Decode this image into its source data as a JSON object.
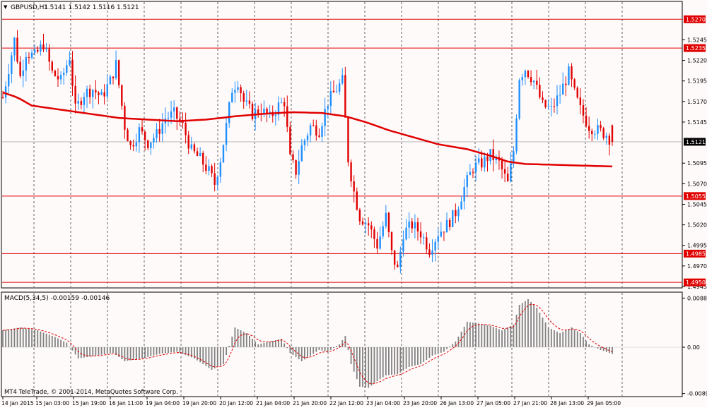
{
  "header": {
    "symbol": "GBPUSD,H1",
    "ohlc": "1.5141 1.5142 1.5116 1.5121"
  },
  "colors": {
    "background": "#fffafa",
    "bull": "#1e90ff",
    "bear": "#e00000",
    "ma_line": "#e00000",
    "grid": "#000000",
    "level_line": "#e00000",
    "price_tag_bg": "#e00000",
    "current_tag_bg": "#000000",
    "macd_hist": "#808080",
    "macd_signal": "#e00000"
  },
  "price_axis": {
    "ticks": [
      "1.5245",
      "1.5220",
      "1.5195",
      "1.5170",
      "1.5145",
      "1.5095",
      "1.5070",
      "1.5045",
      "1.5020",
      "1.4995",
      "1.4970",
      "1.4945"
    ],
    "levels": [
      "1.5270",
      "1.5235",
      "1.5055",
      "1.4985",
      "1.4950"
    ],
    "current": "1.5121"
  },
  "macd": {
    "label": "MACD(5,34,5) -0.00159 -0.00146",
    "ticks": [
      "0.00888",
      "0.00",
      "-0.0089"
    ]
  },
  "copyright": "MT4 TeleTrade, © 2001-2014, MetaQuotes Software Corp.",
  "time_axis": [
    "14 Jan 2015",
    "15 Jan 03:00",
    "15 Jan 19:00",
    "16 Jan 11:00",
    "19 Jan 04:00",
    "19 Jan 20:00",
    "20 Jan 12:00",
    "21 Jan 04:00",
    "21 Jan 20:00",
    "22 Jan 12:00",
    "23 Jan 04:00",
    "23 Jan 20:00",
    "26 Jan 13:00",
    "27 Jan 05:00",
    "27 Jan 21:00",
    "28 Jan 13:00",
    "29 Jan 05:00"
  ],
  "chart_data": {
    "type": "candlestick",
    "symbol": "GBPUSD",
    "timeframe": "H1",
    "last_bar": {
      "open": 1.5141,
      "high": 1.5142,
      "low": 1.5116,
      "close": 1.5121
    },
    "price_range": [
      1.4945,
      1.529
    ],
    "horizontal_levels": [
      1.527,
      1.5235,
      1.5055,
      1.4985,
      1.495
    ],
    "ma_path": [
      [
        0,
        1.5181
      ],
      [
        5,
        1.5175
      ],
      [
        10,
        1.5165
      ],
      [
        20,
        1.516
      ],
      [
        30,
        1.5155
      ],
      [
        40,
        1.515
      ],
      [
        50,
        1.5148
      ],
      [
        60,
        1.5146
      ],
      [
        70,
        1.5148
      ],
      [
        80,
        1.5152
      ],
      [
        90,
        1.5155
      ],
      [
        100,
        1.5157
      ],
      [
        110,
        1.5156
      ],
      [
        118,
        1.5152
      ],
      [
        125,
        1.5145
      ],
      [
        133,
        1.5135
      ],
      [
        140,
        1.5128
      ],
      [
        150,
        1.5118
      ],
      [
        160,
        1.5112
      ],
      [
        168,
        1.5104
      ],
      [
        174,
        1.5097
      ],
      [
        180,
        1.5094
      ],
      [
        190,
        1.5093
      ],
      [
        200,
        1.5092
      ],
      [
        210,
        1.5091
      ]
    ],
    "price_path": [
      [
        0,
        1.5175
      ],
      [
        2,
        1.521
      ],
      [
        4,
        1.5245
      ],
      [
        6,
        1.52
      ],
      [
        8,
        1.523
      ],
      [
        11,
        1.5225
      ],
      [
        14,
        1.524
      ],
      [
        17,
        1.5205
      ],
      [
        20,
        1.5195
      ],
      [
        23,
        1.5225
      ],
      [
        25,
        1.516
      ],
      [
        28,
        1.518
      ],
      [
        31,
        1.5185
      ],
      [
        34,
        1.5175
      ],
      [
        37,
        1.5195
      ],
      [
        39,
        1.5215
      ],
      [
        42,
        1.514
      ],
      [
        44,
        1.5115
      ],
      [
        47,
        1.5135
      ],
      [
        50,
        1.512
      ],
      [
        53,
        1.513
      ],
      [
        56,
        1.515
      ],
      [
        59,
        1.5155
      ],
      [
        62,
        1.514
      ],
      [
        65,
        1.511
      ],
      [
        68,
        1.51
      ],
      [
        71,
        1.5085
      ],
      [
        73,
        1.507
      ],
      [
        75,
        1.51
      ],
      [
        77,
        1.514
      ],
      [
        79,
        1.5185
      ],
      [
        81,
        1.5195
      ],
      [
        83,
        1.517
      ],
      [
        86,
        1.5155
      ],
      [
        89,
        1.516
      ],
      [
        92,
        1.515
      ],
      [
        95,
        1.5165
      ],
      [
        97,
        1.517
      ],
      [
        99,
        1.51
      ],
      [
        101,
        1.5085
      ],
      [
        103,
        1.5115
      ],
      [
        106,
        1.514
      ],
      [
        109,
        1.5135
      ],
      [
        112,
        1.517
      ],
      [
        115,
        1.5185
      ],
      [
        117,
        1.5195
      ],
      [
        119,
        1.51
      ],
      [
        121,
        1.506
      ],
      [
        123,
        1.503
      ],
      [
        126,
        1.502
      ],
      [
        129,
        1.4995
      ],
      [
        132,
        1.503
      ],
      [
        134,
        1.4985
      ],
      [
        136,
        1.4965
      ],
      [
        138,
        1.501
      ],
      [
        141,
        1.502
      ],
      [
        144,
        1.501
      ],
      [
        147,
        1.499
      ],
      [
        150,
        1.501
      ],
      [
        153,
        1.502
      ],
      [
        156,
        1.5035
      ],
      [
        159,
        1.5065
      ],
      [
        162,
        1.509
      ],
      [
        165,
        1.5095
      ],
      [
        168,
        1.5105
      ],
      [
        171,
        1.5095
      ],
      [
        174,
        1.507
      ],
      [
        176,
        1.511
      ],
      [
        178,
        1.52
      ],
      [
        180,
        1.521
      ],
      [
        183,
        1.5195
      ],
      [
        186,
        1.5165
      ],
      [
        189,
        1.516
      ],
      [
        192,
        1.518
      ],
      [
        195,
        1.5205
      ],
      [
        197,
        1.518
      ],
      [
        199,
        1.516
      ],
      [
        202,
        1.514
      ],
      [
        205,
        1.5135
      ],
      [
        208,
        1.513
      ],
      [
        210,
        1.5121
      ]
    ],
    "macd_path": [
      [
        0,
        0.003
      ],
      [
        6,
        0.0035
      ],
      [
        12,
        0.003
      ],
      [
        18,
        0.0018
      ],
      [
        22,
        0.0008
      ],
      [
        26,
        -0.002
      ],
      [
        32,
        -0.0015
      ],
      [
        38,
        -0.001
      ],
      [
        42,
        -0.0025
      ],
      [
        48,
        -0.002
      ],
      [
        54,
        -0.0012
      ],
      [
        60,
        -0.0008
      ],
      [
        66,
        -0.002
      ],
      [
        72,
        -0.004
      ],
      [
        76,
        -0.003
      ],
      [
        80,
        0.0035
      ],
      [
        84,
        0.0025
      ],
      [
        88,
        0.0005
      ],
      [
        92,
        0.001
      ],
      [
        96,
        0.0015
      ],
      [
        99,
        -0.001
      ],
      [
        103,
        -0.0025
      ],
      [
        106,
        -0.0015
      ],
      [
        109,
        -0.0005
      ],
      [
        112,
        -0.0008
      ],
      [
        116,
        0.0005
      ],
      [
        118,
        0.002
      ],
      [
        120,
        -0.003
      ],
      [
        123,
        -0.007
      ],
      [
        126,
        -0.0072
      ],
      [
        129,
        -0.006
      ],
      [
        132,
        -0.005
      ],
      [
        136,
        -0.0048
      ],
      [
        140,
        -0.0035
      ],
      [
        144,
        -0.003
      ],
      [
        148,
        -0.0015
      ],
      [
        152,
        -0.0008
      ],
      [
        156,
        0.001
      ],
      [
        160,
        0.0045
      ],
      [
        164,
        0.0042
      ],
      [
        168,
        0.0038
      ],
      [
        172,
        0.003
      ],
      [
        176,
        0.004
      ],
      [
        178,
        0.0075
      ],
      [
        181,
        0.0085
      ],
      [
        184,
        0.007
      ],
      [
        188,
        0.0035
      ],
      [
        192,
        0.0025
      ],
      [
        196,
        0.0035
      ],
      [
        199,
        0.0025
      ],
      [
        202,
        0.0005
      ],
      [
        206,
        -0.0005
      ],
      [
        210,
        -0.0012
      ]
    ]
  }
}
